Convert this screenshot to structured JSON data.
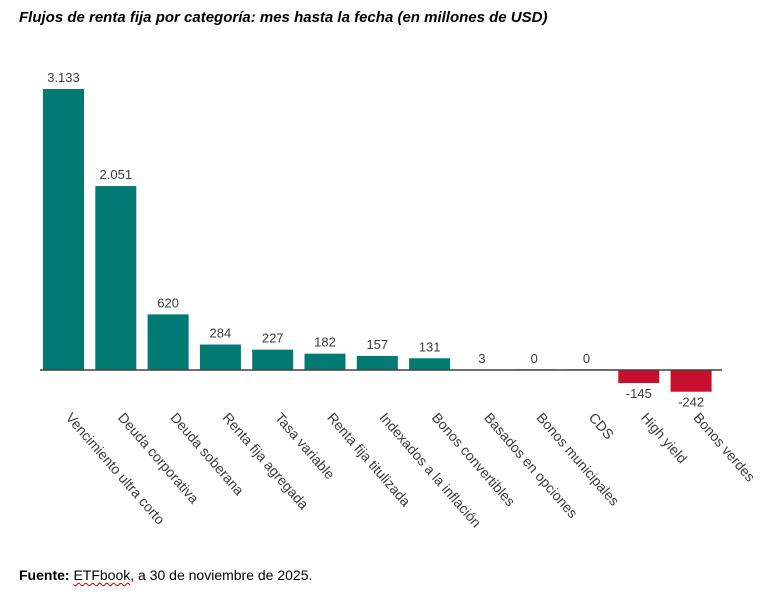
{
  "chart_data": {
    "type": "bar",
    "title": "Flujos de renta fija por categoría: mes hasta la fecha (en millones de USD)",
    "xlabel": "",
    "ylabel": "",
    "ylim": [
      -242,
      3133
    ],
    "categories": [
      "Vencimiento ultra corto",
      "Deuda corporativa",
      "Deuda soberana",
      "Renta fija agregada",
      "Tasa variable",
      "Renta fija titulizada",
      "Indexados a la inflación",
      "Bonos convertibles",
      "Basados en opciones",
      "Bonos municipales",
      "CDS",
      "High yield",
      "Bonos verdes"
    ],
    "values": [
      3133,
      2051,
      620,
      284,
      227,
      182,
      157,
      131,
      3,
      0,
      0,
      -145,
      -242
    ],
    "value_labels": [
      "3.133",
      "2.051",
      "620",
      "284",
      "227",
      "182",
      "157",
      "131",
      "3",
      "0",
      "0",
      "-145",
      "-242"
    ],
    "colors": {
      "positive": "#007a72",
      "negative": "#c8102e",
      "baseline": "#404040",
      "text": "#3c3c3c"
    }
  },
  "source": {
    "label": "Fuente:",
    "brand": "ETFbook",
    "text": ", a 30 de noviembre de 2025."
  }
}
